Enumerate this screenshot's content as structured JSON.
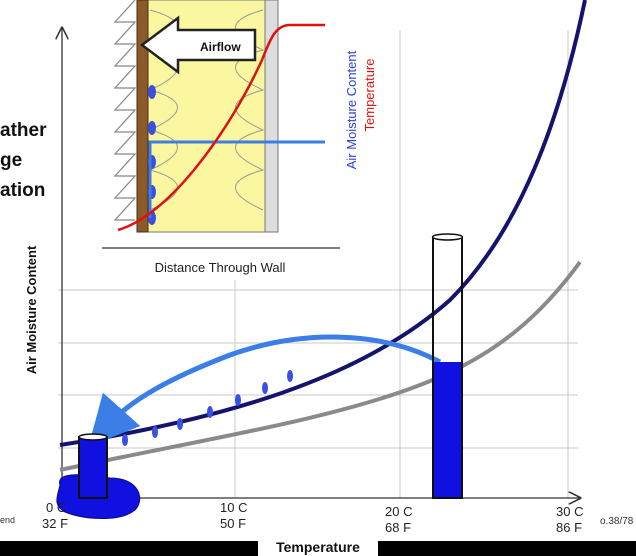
{
  "slide": {
    "title_lines": [
      "ather",
      "ge",
      "ation"
    ],
    "footer_left": "end",
    "page_number": "o.38/78"
  },
  "inset": {
    "arrow_label": "Airflow",
    "y_label_moisture": "Air Moisture Content",
    "y_label_temperature": "Temperature",
    "x_label": "Distance Through Wall"
  },
  "main": {
    "y_label": "Air Moisture Content",
    "x_label": "Temperature",
    "x_ticks": [
      {
        "celsius": "0 C",
        "fahrenheit": "32 F"
      },
      {
        "celsius": "10 C",
        "fahrenheit": "50 F"
      },
      {
        "celsius": "20 C",
        "fahrenheit": "68 F"
      },
      {
        "celsius": "30 C",
        "fahrenheit": "86 F"
      }
    ]
  }
}
